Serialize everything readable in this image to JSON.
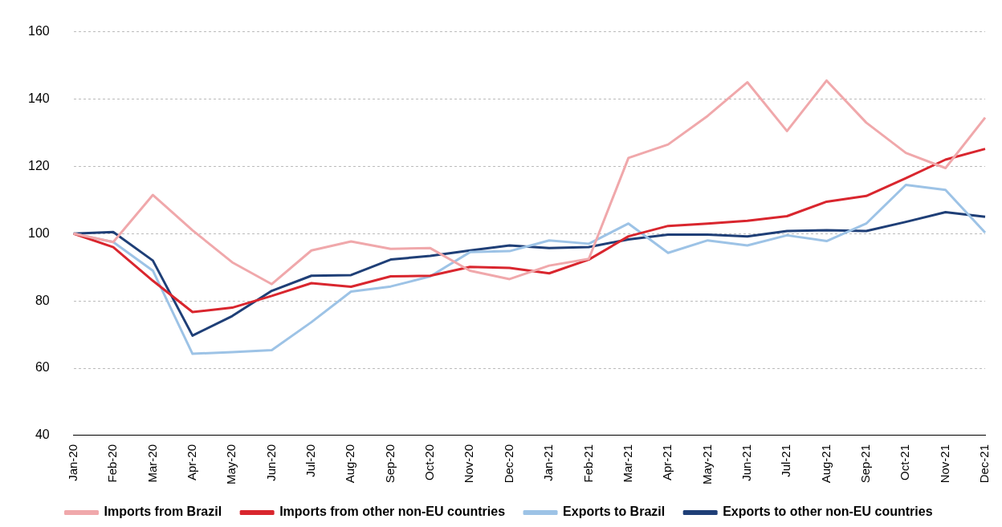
{
  "chart_data": {
    "type": "line",
    "categories": [
      "Jan-20",
      "Feb-20",
      "Mar-20",
      "Apr-20",
      "May-20",
      "Jun-20",
      "Jul-20",
      "Aug-20",
      "Sep-20",
      "Oct-20",
      "Nov-20",
      "Dec-20",
      "Jan-21",
      "Feb-21",
      "Mar-21",
      "Apr-21",
      "May-21",
      "Jun-21",
      "Jul-21",
      "Aug-21",
      "Sep-21",
      "Oct-21",
      "Nov-21",
      "Dec-21"
    ],
    "series": [
      {
        "name": "Imports from Brazil",
        "color": "#f0a8ab",
        "values": [
          100,
          97.5,
          111.5,
          101,
          91.5,
          85,
          95,
          97.7,
          95.5,
          95.7,
          89,
          86.5,
          90.5,
          92.5,
          122.5,
          126.5,
          135,
          145,
          130.5,
          145.5,
          133,
          124,
          119.5,
          134.5
        ]
      },
      {
        "name": "Imports from other non-EU countries",
        "color": "#d9262e",
        "values": [
          100,
          96,
          86,
          76.7,
          78,
          81.5,
          85.3,
          84.2,
          87.3,
          87.5,
          90.1,
          89.8,
          88.2,
          92.3,
          99.2,
          102.3,
          103,
          103.8,
          105.2,
          109.5,
          111.2,
          116.5,
          122,
          125.2
        ]
      },
      {
        "name": "Exports to Brazil",
        "color": "#9dc3e6",
        "values": [
          100,
          97.5,
          89,
          64.3,
          64.8,
          65.4,
          73.7,
          82.8,
          84.3,
          87.3,
          94.5,
          94.8,
          98,
          97,
          103,
          94.3,
          98,
          96.5,
          99.5,
          97.8,
          103,
          114.5,
          113,
          100.3
        ]
      },
      {
        "name": "Exports to other non-EU countries",
        "color": "#1f3f77",
        "values": [
          100,
          100.5,
          92,
          69.7,
          75.5,
          83,
          87.5,
          87.7,
          92.3,
          93.4,
          95,
          96.5,
          95.7,
          96,
          98.3,
          99.7,
          99.7,
          99.2,
          100.8,
          101,
          100.8,
          103.5,
          106.4,
          105
        ]
      }
    ],
    "ylim": [
      40,
      160
    ],
    "yticks": [
      40,
      60,
      80,
      100,
      120,
      140,
      160
    ],
    "grid": "y",
    "legend": "bottom",
    "marker": "none",
    "line_style": "solid"
  }
}
